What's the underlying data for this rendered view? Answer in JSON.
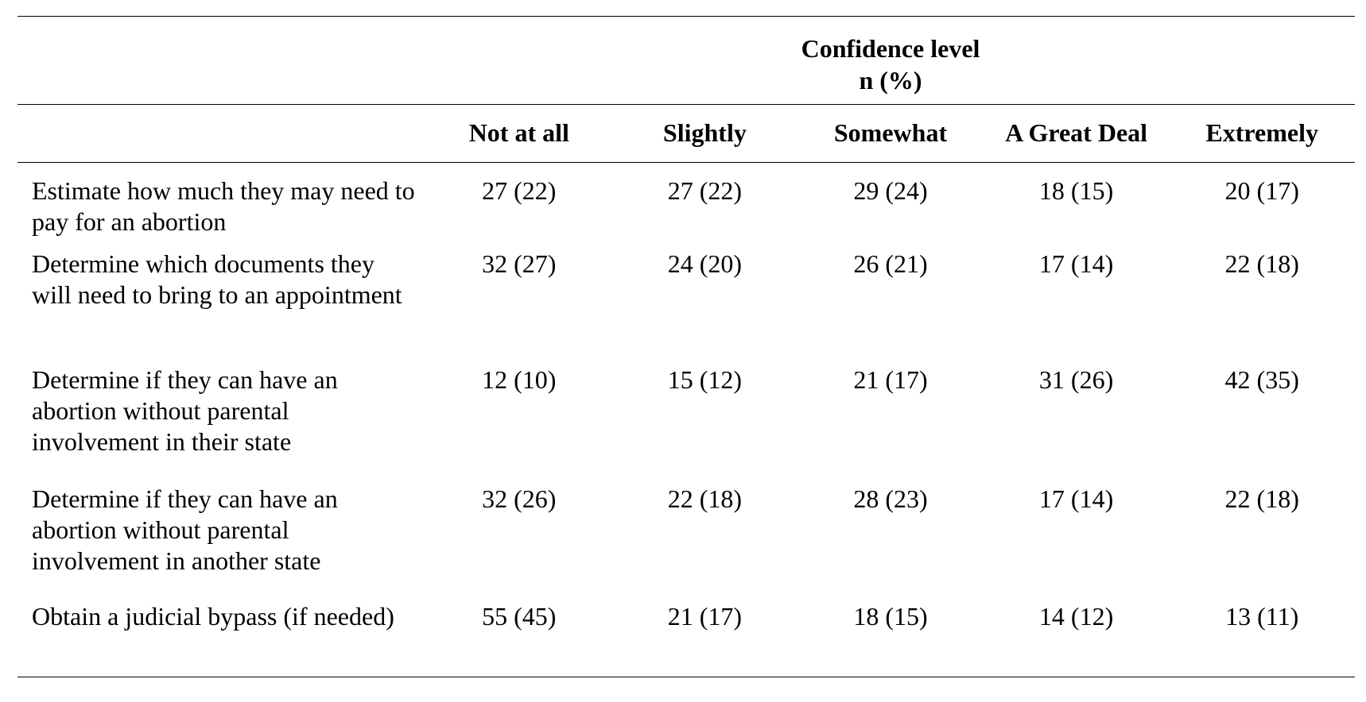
{
  "table": {
    "group_header": {
      "line1": "Confidence level",
      "line2": "n (%)"
    },
    "columns": [
      "Not at all",
      "Slightly",
      "Somewhat",
      "A Great Deal",
      "Extremely"
    ],
    "rows": [
      {
        "label": "Estimate how much they may need to pay for an abortion",
        "values": [
          "27 (22)",
          "27 (22)",
          "29 (24)",
          "18 (15)",
          "20 (17)"
        ]
      },
      {
        "label": "Determine which documents they will need to bring to an appointment",
        "values": [
          "32 (27)",
          "24 (20)",
          "26 (21)",
          "17 (14)",
          "22 (18)"
        ]
      },
      {
        "label": "Determine if they can have an abortion without parental involvement in their state",
        "values": [
          "12 (10)",
          "15 (12)",
          "21 (17)",
          "31 (26)",
          "42 (35)"
        ]
      },
      {
        "label": "Determine if they can have an abortion without parental involvement in another state",
        "values": [
          "32 (26)",
          "22 (18)",
          "28 (23)",
          "17 (14)",
          "22 (18)"
        ]
      },
      {
        "label": "Obtain a judicial bypass (if needed)",
        "values": [
          "55 (45)",
          "21 (17)",
          "18 (15)",
          "14 (12)",
          "13 (11)"
        ]
      }
    ]
  }
}
